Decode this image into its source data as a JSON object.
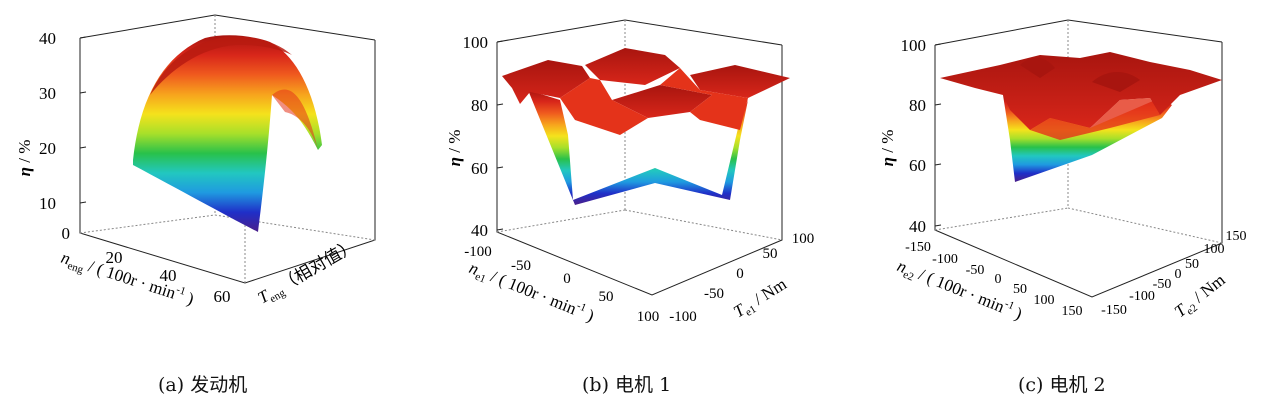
{
  "palette": [
    "#4b1f8a",
    "#1f2fc8",
    "#1f9ae0",
    "#22c7c0",
    "#29c14a",
    "#a8e02a",
    "#f5e21c",
    "#f7a31d",
    "#ef5a1e",
    "#d8261a",
    "#a8150f"
  ],
  "chart_data": [
    {
      "type": "surface3d",
      "panel_label": "(a)",
      "caption": "(a) 发动机",
      "zlabel": "η / %",
      "xlabel": "n_eng / ( 100r · min⁻¹ )",
      "ylabel": "T_eng ( 相对值 )",
      "xlabel_parts": {
        "sym": "n",
        "sub": "eng",
        "unit": " / ( 100r · min",
        "sup": "-1",
        "end": " )"
      },
      "ylabel_parts": {
        "sym": "T",
        "sub": "eng",
        "unit": "（相对值）"
      },
      "zlabel_parts": {
        "sym": "η",
        "unit": " / %"
      },
      "zlim": [
        0,
        40
      ],
      "zticks": [
        "40",
        "30",
        "20",
        "10",
        "0"
      ],
      "xticks": [
        "0",
        "20",
        "40",
        "60"
      ],
      "yticks": [],
      "description": "dome-shaped efficiency surface rising with speed, peak about 40%",
      "profile_z": [
        18,
        29,
        36,
        39.5,
        39,
        36,
        31,
        21
      ]
    },
    {
      "type": "surface3d",
      "panel_label": "(b)",
      "caption": "(b) 电机 1",
      "zlabel": "η / %",
      "xlabel": "n_e1 / ( 100r · min⁻¹ )",
      "ylabel": "T_e1 / Nm",
      "xlabel_parts": {
        "sym": "n",
        "sub": "e1",
        "unit": " / ( 100r · min",
        "sup": "-1",
        "end": " )"
      },
      "ylabel_parts": {
        "sym": "T",
        "sub": "e1",
        "unit": " / Nm"
      },
      "zlabel_parts": {
        "sym": "η",
        "unit": " / %"
      },
      "zlim": [
        40,
        100
      ],
      "zticks": [
        "100",
        "80",
        "60",
        "40"
      ],
      "xticks": [
        "-100",
        "-50",
        "0",
        "50",
        "100"
      ],
      "yticks": [
        "-100",
        "-50",
        "0",
        "50",
        "100"
      ],
      "description": "plateau about 88–92% with a deep trough to about 55% near zero torque / zero speed",
      "plateau_z": 89,
      "trough_z": 55
    },
    {
      "type": "surface3d",
      "panel_label": "(c)",
      "caption": "(c) 电机 2",
      "zlabel": "η / %",
      "xlabel": "n_e2 / ( 100r · min⁻¹ )",
      "ylabel": "T_e2 / Nm",
      "xlabel_parts": {
        "sym": "n",
        "sub": "e2",
        "unit": " / ( 100r · min",
        "sup": "-1",
        "end": " )"
      },
      "ylabel_parts": {
        "sym": "T",
        "sub": "e2",
        "unit": " / Nm"
      },
      "zlabel_parts": {
        "sym": "η",
        "unit": " / %"
      },
      "zlim": [
        40,
        100
      ],
      "zticks": [
        "100",
        "80",
        "60",
        "40"
      ],
      "xticks": [
        "-150",
        "-100",
        "-50",
        "0",
        "50",
        "100",
        "150"
      ],
      "yticks": [
        "-150",
        "-100",
        "-50",
        "0",
        "50",
        "100",
        "150"
      ],
      "description": "plateau about 88–92% with a trough to about 55% near zero torque",
      "plateau_z": 90,
      "trough_z": 55
    }
  ]
}
